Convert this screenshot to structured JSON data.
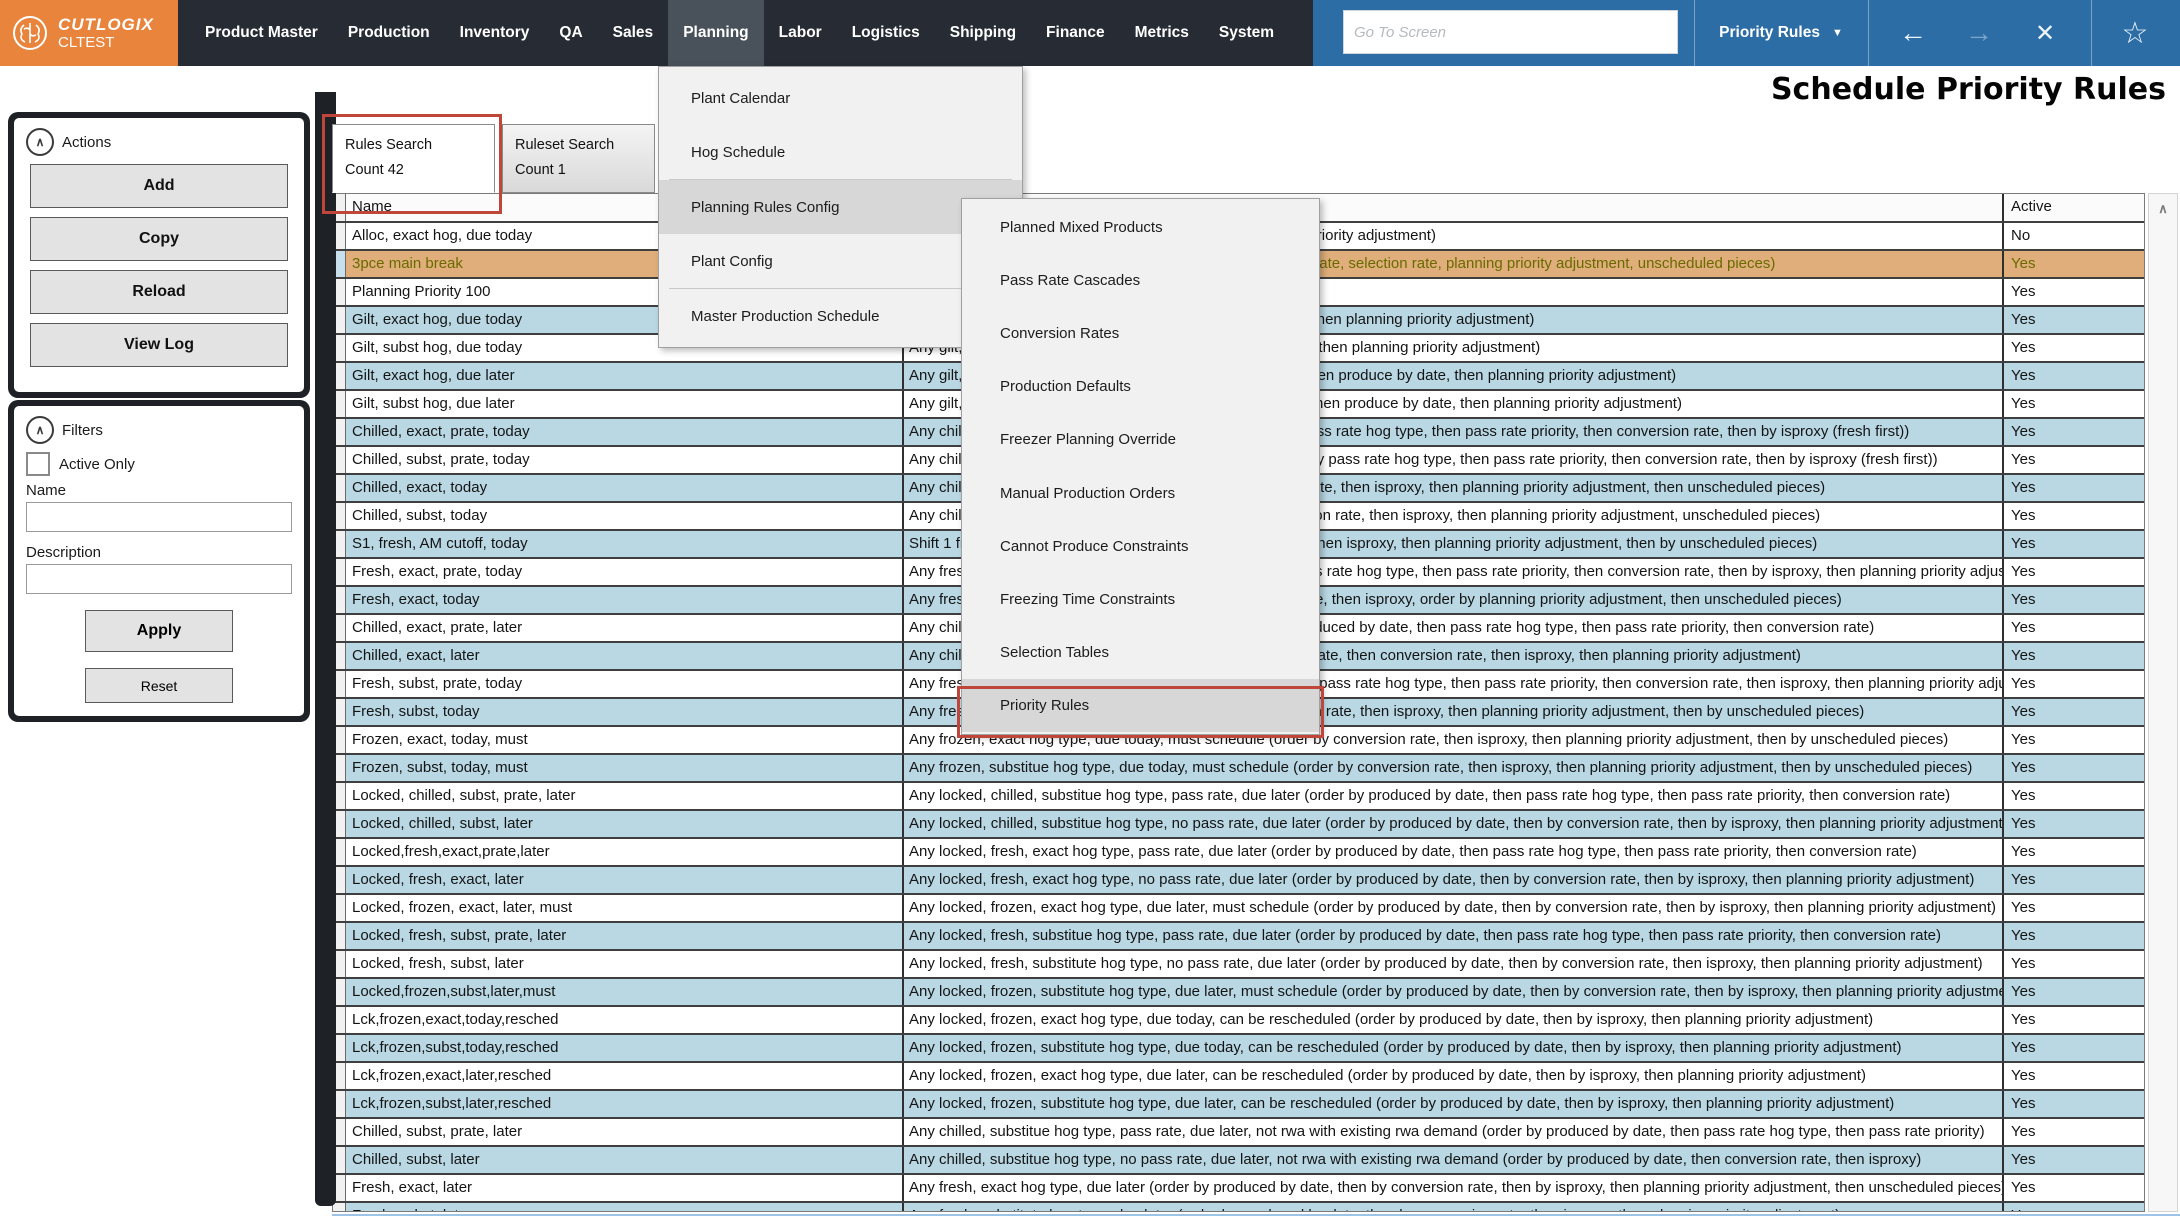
{
  "nav": {
    "brand": "CUTLOGIX",
    "environment": "CLTEST",
    "items": [
      "Product Master",
      "Production",
      "Inventory",
      "QA",
      "Sales",
      "Planning",
      "Labor",
      "Logistics",
      "Shipping",
      "Finance",
      "Metrics",
      "System"
    ],
    "active_item": "Planning",
    "goto_placeholder": "Go To Screen",
    "screen_dropdown_label": "Priority Rules",
    "back_icon": "←",
    "forward_icon": "→",
    "close_icon": "✕",
    "favorite_icon": "☆",
    "colors": {
      "bar": "#272c34",
      "logo": "#e8843c",
      "blue_section": "#2d6da6",
      "active_item_bg": "#49515b"
    }
  },
  "page_title": "Schedule Priority Rules",
  "actions_panel": {
    "title": "Actions",
    "buttons": [
      "Add",
      "Copy",
      "Reload",
      "View Log"
    ]
  },
  "filters_panel": {
    "title": "Filters",
    "active_only_label": "Active Only",
    "name_label": "Name",
    "name_value": "",
    "description_label": "Description",
    "description_value": "",
    "apply_label": "Apply",
    "reset_label": "Reset"
  },
  "tabs": [
    {
      "line1": "Rules Search",
      "line2": "Count 42",
      "selected": true,
      "annotated": true
    },
    {
      "line1": "Ruleset Search",
      "line2": "Count 1",
      "selected": false,
      "annotated": false
    }
  ],
  "planning_menu": {
    "items": [
      {
        "label": "Plant Calendar",
        "submenu": false,
        "highlighted": false
      },
      {
        "label": "Hog Schedule",
        "submenu": false,
        "highlighted": false
      },
      {
        "separator": true
      },
      {
        "label": "Planning Rules Config",
        "submenu": true,
        "highlighted": true
      },
      {
        "label": "Plant Config",
        "submenu": true,
        "highlighted": false
      },
      {
        "separator": true
      },
      {
        "label": "Master Production Schedule",
        "submenu": false,
        "highlighted": false
      }
    ]
  },
  "planning_rules_submenu": {
    "items": [
      "Planned Mixed Products",
      "Pass Rate Cascades",
      "Conversion Rates",
      "Production Defaults",
      "Freezer Planning Override",
      "Manual Production Orders",
      "Cannot Produce Constraints",
      "Freezing Time Constraints",
      "Selection Tables",
      "Priority Rules"
    ],
    "highlighted_item": "Priority Rules"
  },
  "grid": {
    "header": {
      "name": "Name",
      "description": "",
      "active": "Active"
    },
    "row_colors": {
      "blue": "#b9d8e4",
      "selected_orange": "#dfae7b",
      "white": "#ffffff"
    },
    "rows": [
      {
        "name": "Alloc, exact hog, due today",
        "desc": "Any allocated, exact hog type, due today (order by planning priority adjustment)",
        "active": "No",
        "tone": "white"
      },
      {
        "name": "3pce main break",
        "desc": "3pce main break (order by produce by date, then conversion rate, selection rate, planning priority adjustment, unscheduled pieces)",
        "active": "Yes",
        "tone": "orange"
      },
      {
        "name": "Planning Priority 100",
        "desc": "Planning priority 100",
        "active": "Yes",
        "tone": "white"
      },
      {
        "name": "Gilt, exact hog, due today",
        "desc": "Any gilt, exact hog type, due today (order by exact hog type, then planning priority adjustment)",
        "active": "Yes",
        "tone": "blue"
      },
      {
        "name": "Gilt, subst hog, due today",
        "desc": "Any gilt, substitute hog type, due today (order by sibling type, then planning priority adjustment)",
        "active": "Yes",
        "tone": "white"
      },
      {
        "name": "Gilt, exact hog, due later",
        "desc": "Any gilt, exact hog type, due later (order by exact hog type, then produce by date, then planning priority adjustment)",
        "active": "Yes",
        "tone": "blue"
      },
      {
        "name": "Gilt, subst hog, due later",
        "desc": "Any gilt, substitute hog type, due later (order by sibling type, then produce by date, then planning priority adjustment)",
        "active": "Yes",
        "tone": "white"
      },
      {
        "name": "Chilled, exact, prate, today",
        "desc": "Any chilled, exact hog type, pass rate, due today (order by pass rate hog type, then pass rate priority, then conversion rate, then by isproxy (fresh first))",
        "active": "Yes",
        "tone": "blue"
      },
      {
        "name": "Chilled, subst, prate, today",
        "desc": "Any chilled, substitute hog type, pass rate, due today (order by pass rate hog type, then pass rate priority, then conversion rate, then by isproxy (fresh first))",
        "active": "Yes",
        "tone": "white"
      },
      {
        "name": "Chilled, exact, today",
        "desc": "Any chilled, exact hog type, due today (order by conversion rate, then isproxy, then planning priority adjustment, then unscheduled pieces)",
        "active": "Yes",
        "tone": "blue"
      },
      {
        "name": "Chilled, subst, today",
        "desc": "Any chilled, substitute hog type, due today (order by conversion rate, then isproxy, then planning priority adjustment, unscheduled pieces)",
        "active": "Yes",
        "tone": "white"
      },
      {
        "name": "S1, fresh, AM cutoff, today",
        "desc": "Shift 1 fresh, AM cutoff, due today (order by conversion rate, then isproxy, then planning priority adjustment, then by unscheduled pieces)",
        "active": "Yes",
        "tone": "blue"
      },
      {
        "name": "Fresh, exact, prate, today",
        "desc": "Any fresh, exact hog type, pass rate, due today (order by pass rate hog type, then pass rate priority, then conversion rate, then by isproxy, then planning priority adjustment)",
        "active": "Yes",
        "tone": "white"
      },
      {
        "name": "Fresh, exact, today",
        "desc": "Any fresh, exact hog type, due today (order by conversion rate, then isproxy, order by planning priority adjustment, then unscheduled pieces)",
        "active": "Yes",
        "tone": "blue"
      },
      {
        "name": "Chilled, exact, prate, later",
        "desc": "Any chilled, exact hog type, pass rate, due later (order by produced by date, then pass rate hog type, then pass rate priority, then conversion rate)",
        "active": "Yes",
        "tone": "white"
      },
      {
        "name": "Chilled, exact, later",
        "desc": "Any chilled, exact hog type, due later (order by produced by date, then conversion rate, then isproxy, then planning priority adjustment)",
        "active": "Yes",
        "tone": "blue"
      },
      {
        "name": "Fresh, subst, prate, today",
        "desc": "Any fresh, substitute hog type, pass rate, due today (order by pass rate hog type, then pass rate priority, then conversion rate, then isproxy, then planning priority adjustment)",
        "active": "Yes",
        "tone": "white"
      },
      {
        "name": "Fresh, subst, today",
        "desc": "Any fresh, substitute hog type, due today (order by conversion rate, then isproxy, then planning priority adjustment, then by unscheduled pieces)",
        "active": "Yes",
        "tone": "blue"
      },
      {
        "name": "Frozen, exact, today, must",
        "desc": "Any frozen, exact hog type, due today, must schedule (order by conversion rate, then isproxy, then planning priority adjustment, then by unscheduled pieces)",
        "active": "Yes",
        "tone": "white"
      },
      {
        "name": "Frozen, subst, today, must",
        "desc": "Any frozen, substitue hog type, due today, must schedule (order by conversion rate, then isproxy, then planning priority adjustment, then by unscheduled pieces)",
        "active": "Yes",
        "tone": "blue"
      },
      {
        "name": "Locked, chilled, subst, prate, later",
        "desc": "Any locked, chilled, substitue hog type, pass rate, due later (order by produced by date, then pass rate hog type, then pass rate priority, then conversion rate)",
        "active": "Yes",
        "tone": "white"
      },
      {
        "name": "Locked, chilled, subst, later",
        "desc": "Any locked, chilled, substitue hog type, no pass rate, due later (order by produced by date, then by conversion rate, then by isproxy, then planning priority adjustment)",
        "active": "Yes",
        "tone": "blue"
      },
      {
        "name": "Locked,fresh,exact,prate,later",
        "desc": "Any locked, fresh, exact hog type, pass rate, due later (order by produced by date, then pass rate hog type, then pass rate priority, then conversion rate)",
        "active": "Yes",
        "tone": "white"
      },
      {
        "name": "Locked, fresh, exact, later",
        "desc": "Any locked, fresh, exact hog type, no pass rate, due later (order by produced by date, then by conversion rate, then by isproxy, then planning priority adjustment)",
        "active": "Yes",
        "tone": "blue"
      },
      {
        "name": "Locked, frozen, exact, later, must",
        "desc": "Any locked, frozen, exact hog type, due later, must schedule (order by produced by date, then by conversion rate, then by isproxy, then planning priority adjustment)",
        "active": "Yes",
        "tone": "white"
      },
      {
        "name": "Locked, fresh, subst, prate, later",
        "desc": "Any locked, fresh, substitue hog type, pass rate, due later (order by produced by date, then pass rate hog type, then pass rate priority, then conversion rate)",
        "active": "Yes",
        "tone": "blue"
      },
      {
        "name": "Locked, fresh, subst, later",
        "desc": "Any locked, fresh, substitute hog type, no pass rate, due later (order by produced by date, then by conversion rate, then isproxy, then planning priority adjustment)",
        "active": "Yes",
        "tone": "white"
      },
      {
        "name": "Locked,frozen,subst,later,must",
        "desc": "Any locked, frozen, substitute hog type, due later, must schedule (order by produced by date, then by conversion rate, then by isproxy, then planning priority adjustment)",
        "active": "Yes",
        "tone": "blue"
      },
      {
        "name": "Lck,frozen,exact,today,resched",
        "desc": "Any locked, frozen, exact hog type, due today, can be rescheduled (order by produced by date, then by isproxy, then planning priority adjustment)",
        "active": "Yes",
        "tone": "white"
      },
      {
        "name": "Lck,frozen,subst,today,resched",
        "desc": "Any locked, frozen, substitute hog type, due today, can be rescheduled (order by produced by date, then by isproxy, then planning priority adjustment)",
        "active": "Yes",
        "tone": "blue"
      },
      {
        "name": "Lck,frozen,exact,later,resched",
        "desc": "Any locked, frozen, exact hog type, due later, can be rescheduled (order by produced by date, then by isproxy, then planning priority adjustment)",
        "active": "Yes",
        "tone": "white"
      },
      {
        "name": "Lck,frozen,subst,later,resched",
        "desc": "Any locked, frozen, substitute hog type, due later, can be rescheduled (order by produced by date, then by isproxy, then planning priority adjustment)",
        "active": "Yes",
        "tone": "blue"
      },
      {
        "name": "Chilled, subst, prate, later",
        "desc": "Any chilled, substitue hog type, pass rate, due later, not rwa with existing rwa demand (order by produced by date, then pass rate hog type, then pass rate priority)",
        "active": "Yes",
        "tone": "white"
      },
      {
        "name": "Chilled, subst, later",
        "desc": "Any chilled, substitue hog type, no pass rate, due later, not rwa with existing rwa demand (order by produced by date, then conversion rate, then isproxy)",
        "active": "Yes",
        "tone": "blue"
      },
      {
        "name": "Fresh, exact, later",
        "desc": "Any fresh, exact hog type, due later (order by produced by date, then by conversion rate, then by isproxy, then planning priority adjustment, then unscheduled pieces)",
        "active": "Yes",
        "tone": "white"
      },
      {
        "name": "Fresh, subst, later",
        "desc": "Any fresh, substitute hog type, due later (order by produced by date, then by conversion rate, then isproxy, then planning priority adjustment)",
        "active": "Yes",
        "tone": "blue"
      }
    ]
  },
  "scrollbar": {
    "up_icon": "∧"
  }
}
